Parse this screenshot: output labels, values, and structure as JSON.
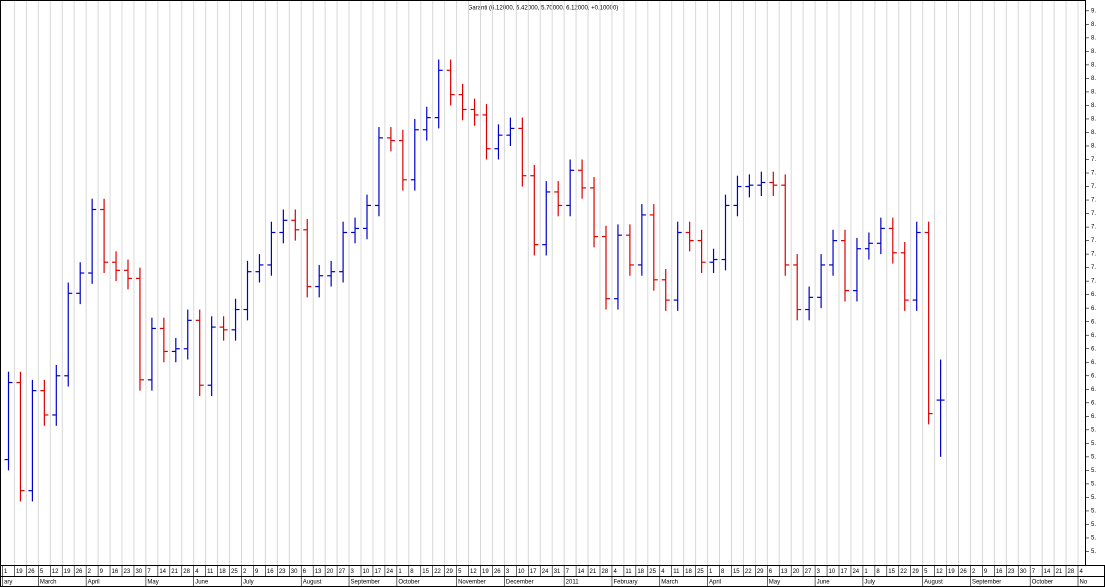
{
  "chart_data": {
    "type": "ohlc",
    "title": "Garanti (6.12000, 6.42000, 5.70000, 6.12000, +0.10000)",
    "up_color": "#0000cc",
    "down_color": "#dd0000",
    "grid": true,
    "categories": [
      "1",
      "19",
      "26",
      "5",
      "12",
      "19",
      "26",
      "2",
      "9",
      "16",
      "23",
      "30",
      "7",
      "14",
      "21",
      "28",
      "4",
      "11",
      "18",
      "25",
      "2",
      "9",
      "16",
      "23",
      "30",
      "6",
      "13",
      "20",
      "27",
      "3",
      "10",
      "17",
      "24",
      "1",
      "8",
      "15",
      "22",
      "29",
      "5",
      "12",
      "19",
      "26",
      "3",
      "10",
      "17",
      "24",
      "31",
      "7",
      "14",
      "21",
      "28",
      "4",
      "11",
      "18",
      "25",
      "4",
      "11",
      "18",
      "25",
      "1",
      "8",
      "15",
      "22",
      "29",
      "6",
      "13",
      "20",
      "27",
      "3",
      "10",
      "17",
      "24",
      "1",
      "8",
      "15",
      "22",
      "29",
      "5",
      "12",
      "19",
      "26",
      "2",
      "9",
      "16",
      "23",
      "30",
      "7",
      "14",
      "21",
      "28",
      "4"
    ],
    "months": [
      "ary",
      null,
      null,
      "March",
      null,
      null,
      null,
      "April",
      null,
      null,
      null,
      null,
      "May",
      null,
      null,
      null,
      "June",
      null,
      null,
      null,
      "July",
      null,
      null,
      null,
      null,
      "August",
      null,
      null,
      null,
      "September",
      null,
      null,
      null,
      "October",
      null,
      null,
      null,
      null,
      "November",
      null,
      null,
      null,
      "December",
      null,
      null,
      null,
      null,
      "2011",
      null,
      null,
      null,
      "February",
      null,
      null,
      null,
      "March",
      null,
      null,
      null,
      "April",
      null,
      null,
      null,
      null,
      "May",
      null,
      null,
      null,
      "June",
      null,
      null,
      null,
      "July",
      null,
      null,
      null,
      null,
      "August",
      null,
      null,
      null,
      "September",
      null,
      null,
      null,
      null,
      "October",
      null,
      null,
      null,
      "No"
    ],
    "open": [
      5.68,
      6.25,
      5.45,
      6.19,
      6.01,
      6.3,
      6.91,
      7.06,
      7.53,
      7.14,
      7.08,
      7.02,
      6.27,
      6.65,
      6.48,
      6.5,
      6.71,
      6.23,
      6.66,
      6.64,
      6.79,
      7.07,
      7.12,
      7.36,
      7.45,
      7.38,
      6.96,
      7.04,
      7.07,
      7.36,
      7.39,
      7.56,
      8.06,
      8.04,
      7.75,
      8.12,
      8.21,
      8.56,
      8.38,
      8.27,
      8.23,
      7.98,
      8.08,
      8.13,
      7.78,
      7.27,
      7.66,
      7.56,
      7.82,
      7.69,
      7.33,
      6.87,
      7.34,
      7.12,
      7.49,
      7.01,
      6.86,
      7.36,
      7.3,
      7.14,
      7.16,
      7.56,
      7.7,
      7.71,
      7.73,
      7.71,
      7.12,
      6.79,
      6.88,
      7.12,
      7.3,
      6.93,
      7.24,
      7.28,
      7.39,
      7.21,
      6.86,
      7.36,
      6.12,
      null,
      null,
      null,
      null,
      null,
      null,
      null,
      null,
      null,
      null,
      null,
      null
    ],
    "high": [
      6.33,
      6.33,
      6.27,
      6.27,
      6.38,
      6.99,
      7.14,
      7.61,
      7.61,
      7.22,
      7.16,
      7.1,
      6.73,
      6.73,
      6.58,
      6.79,
      6.79,
      6.74,
      6.74,
      6.87,
      7.15,
      7.2,
      7.44,
      7.53,
      7.53,
      7.46,
      7.12,
      7.15,
      7.44,
      7.47,
      7.64,
      8.14,
      8.14,
      8.12,
      8.2,
      8.29,
      8.64,
      8.64,
      8.46,
      8.35,
      8.31,
      8.16,
      8.21,
      8.21,
      7.86,
      7.74,
      7.74,
      7.9,
      7.9,
      7.77,
      7.41,
      7.42,
      7.42,
      7.57,
      7.57,
      7.09,
      7.44,
      7.44,
      7.38,
      7.24,
      7.64,
      7.78,
      7.79,
      7.81,
      7.81,
      7.79,
      7.2,
      6.96,
      7.2,
      7.38,
      7.38,
      7.32,
      7.36,
      7.47,
      7.47,
      7.29,
      7.44,
      7.44,
      6.42,
      null,
      null,
      null,
      null,
      null,
      null,
      null,
      null,
      null,
      null,
      null,
      null
    ],
    "low": [
      5.6,
      5.37,
      5.37,
      5.93,
      5.93,
      6.22,
      6.83,
      6.98,
      7.06,
      7.0,
      6.94,
      6.19,
      6.19,
      6.4,
      6.4,
      6.42,
      6.15,
      6.15,
      6.56,
      6.56,
      6.71,
      6.99,
      7.04,
      7.28,
      7.3,
      6.88,
      6.88,
      6.96,
      6.99,
      7.28,
      7.31,
      7.48,
      7.96,
      7.67,
      7.67,
      8.04,
      8.13,
      8.3,
      8.19,
      8.15,
      7.9,
      7.9,
      8.0,
      7.7,
      7.19,
      7.19,
      7.48,
      7.48,
      7.61,
      7.25,
      6.79,
      6.79,
      7.04,
      7.04,
      6.93,
      6.78,
      6.78,
      7.22,
      7.06,
      7.06,
      7.08,
      7.48,
      7.62,
      7.63,
      7.63,
      7.04,
      6.71,
      6.71,
      6.8,
      7.04,
      6.85,
      6.85,
      7.16,
      7.2,
      7.13,
      6.78,
      6.78,
      5.94,
      5.7,
      null,
      null,
      null,
      null,
      null,
      null,
      null,
      null,
      null,
      null,
      null,
      null
    ],
    "close": [
      6.25,
      5.45,
      6.19,
      6.01,
      6.3,
      6.91,
      7.06,
      7.53,
      7.14,
      7.08,
      7.02,
      6.27,
      6.65,
      6.48,
      6.5,
      6.71,
      6.23,
      6.66,
      6.64,
      6.79,
      7.07,
      7.12,
      7.36,
      7.45,
      7.38,
      6.96,
      7.04,
      7.07,
      7.36,
      7.39,
      7.56,
      8.06,
      8.04,
      7.75,
      8.12,
      8.21,
      8.56,
      8.38,
      8.27,
      8.23,
      7.98,
      8.08,
      8.13,
      7.78,
      7.27,
      7.66,
      7.56,
      7.82,
      7.69,
      7.33,
      6.87,
      7.34,
      7.12,
      7.49,
      7.01,
      6.86,
      7.36,
      7.3,
      7.14,
      7.16,
      7.56,
      7.7,
      7.71,
      7.73,
      7.71,
      7.12,
      6.79,
      6.88,
      7.12,
      7.3,
      6.93,
      7.24,
      7.28,
      7.39,
      7.21,
      6.86,
      7.36,
      6.02,
      6.12,
      null,
      null,
      null,
      null,
      null,
      null,
      null,
      null,
      null,
      null,
      null,
      null
    ],
    "ylim": [
      4.9,
      9.08
    ],
    "yticks": [
      {
        "value": 9,
        "label": "9."
      },
      {
        "value": 8.9,
        "label": "8."
      },
      {
        "value": 8.8,
        "label": "8."
      },
      {
        "value": 8.7,
        "label": "8."
      },
      {
        "value": 8.6,
        "label": "8."
      },
      {
        "value": 8.5,
        "label": "8."
      },
      {
        "value": 8.4,
        "label": "8."
      },
      {
        "value": 8.3,
        "label": "8."
      },
      {
        "value": 8.2,
        "label": "8."
      },
      {
        "value": 8.1,
        "label": "8."
      },
      {
        "value": 8,
        "label": "8."
      },
      {
        "value": 7.9,
        "label": "7."
      },
      {
        "value": 7.8,
        "label": "7."
      },
      {
        "value": 7.7,
        "label": "7."
      },
      {
        "value": 7.6,
        "label": "7."
      },
      {
        "value": 7.5,
        "label": "7."
      },
      {
        "value": 7.4,
        "label": "7."
      },
      {
        "value": 7.3,
        "label": "7."
      },
      {
        "value": 7.2,
        "label": "7."
      },
      {
        "value": 7.1,
        "label": "7."
      },
      {
        "value": 7,
        "label": "7."
      },
      {
        "value": 6.9,
        "label": "6."
      },
      {
        "value": 6.8,
        "label": "6."
      },
      {
        "value": 6.7,
        "label": "6."
      },
      {
        "value": 6.6,
        "label": "6."
      },
      {
        "value": 6.5,
        "label": "6."
      },
      {
        "value": 6.4,
        "label": "6."
      },
      {
        "value": 6.3,
        "label": "6."
      },
      {
        "value": 6.2,
        "label": "6."
      },
      {
        "value": 6.1,
        "label": "6."
      },
      {
        "value": 6,
        "label": "6."
      },
      {
        "value": 5.9,
        "label": "5."
      },
      {
        "value": 5.8,
        "label": "5."
      },
      {
        "value": 5.7,
        "label": "5."
      },
      {
        "value": 5.6,
        "label": "5."
      },
      {
        "value": 5.5,
        "label": "5."
      },
      {
        "value": 5.4,
        "label": "5."
      },
      {
        "value": 5.3,
        "label": "5."
      },
      {
        "value": 5.2,
        "label": "5."
      },
      {
        "value": 5.1,
        "label": "5."
      },
      {
        "value": 5,
        "label": "5."
      }
    ]
  }
}
